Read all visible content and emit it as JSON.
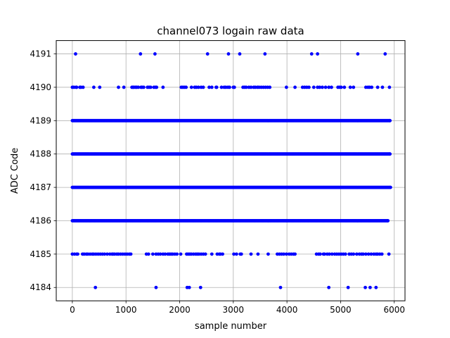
{
  "chart_data": {
    "type": "scatter",
    "title": "channel073 logain raw data",
    "xlabel": "sample number",
    "ylabel": "ADC Code",
    "xlim": [
      -300,
      6200
    ],
    "ylim": [
      4183.6,
      4191.4
    ],
    "xticks": [
      0,
      1000,
      2000,
      3000,
      4000,
      5000,
      6000
    ],
    "yticks": [
      4184,
      4185,
      4186,
      4187,
      4188,
      4189,
      4190,
      4191
    ],
    "grid": true,
    "marker_color": "#0000ff",
    "series": [
      {
        "values_dense": {
          "4189": [
            0,
            5920
          ],
          "4188": [
            0,
            5920
          ],
          "4187": [
            0,
            5930
          ],
          "4186": [
            0,
            5880
          ]
        },
        "points_sparse": {
          "4191": [
            60,
            1270,
            1540,
            2520,
            2910,
            3120,
            3590,
            4460,
            4570,
            5320,
            5830
          ],
          "4190": [
            0,
            30,
            70,
            80,
            140,
            160,
            200,
            400,
            510,
            860,
            960,
            1110,
            1130,
            1150,
            1180,
            1200,
            1230,
            1280,
            1300,
            1330,
            1400,
            1430,
            1460,
            1520,
            1550,
            1570,
            1690,
            2030,
            2060,
            2090,
            2120,
            2220,
            2280,
            2310,
            2350,
            2400,
            2440,
            2550,
            2600,
            2680,
            2690,
            2780,
            2830,
            2860,
            2900,
            2930,
            3000,
            3020,
            3180,
            3210,
            3240,
            3290,
            3330,
            3380,
            3410,
            3450,
            3480,
            3520,
            3560,
            3600,
            3640,
            3680,
            3990,
            4150,
            4290,
            4330,
            4370,
            4410,
            4500,
            4570,
            4610,
            4660,
            4720,
            4780,
            4830,
            4950,
            4980,
            5010,
            5070,
            5180,
            5240,
            5470,
            5510,
            5540,
            5580,
            5690,
            5780,
            5910
          ],
          "4185": [
            0,
            40,
            80,
            100,
            190,
            220,
            260,
            290,
            330,
            370,
            400,
            440,
            480,
            520,
            560,
            600,
            650,
            700,
            740,
            760,
            790,
            830,
            860,
            900,
            940,
            980,
            1020,
            1060,
            1090,
            1380,
            1420,
            1500,
            1560,
            1600,
            1640,
            1690,
            1730,
            1780,
            1810,
            1840,
            1870,
            1910,
            1950,
            2020,
            2130,
            2160,
            2190,
            2220,
            2260,
            2300,
            2330,
            2360,
            2400,
            2440,
            2480,
            2600,
            2700,
            2740,
            2760,
            2800,
            3010,
            3060,
            3130,
            3150,
            3330,
            3460,
            3650,
            3820,
            3860,
            3900,
            3940,
            3990,
            4040,
            4080,
            4120,
            4150,
            4550,
            4590,
            4620,
            4680,
            4700,
            4750,
            4790,
            4840,
            4890,
            4930,
            4970,
            5010,
            5050,
            5090,
            5160,
            5200,
            5240,
            5300,
            5350,
            5390,
            5420,
            5470,
            5520,
            5570,
            5620,
            5660,
            5690,
            5730,
            5770,
            5900
          ],
          "4184": [
            430,
            1560,
            2140,
            2180,
            2390,
            3880,
            4780,
            5140,
            5460,
            5550,
            5660
          ]
        }
      }
    ]
  }
}
